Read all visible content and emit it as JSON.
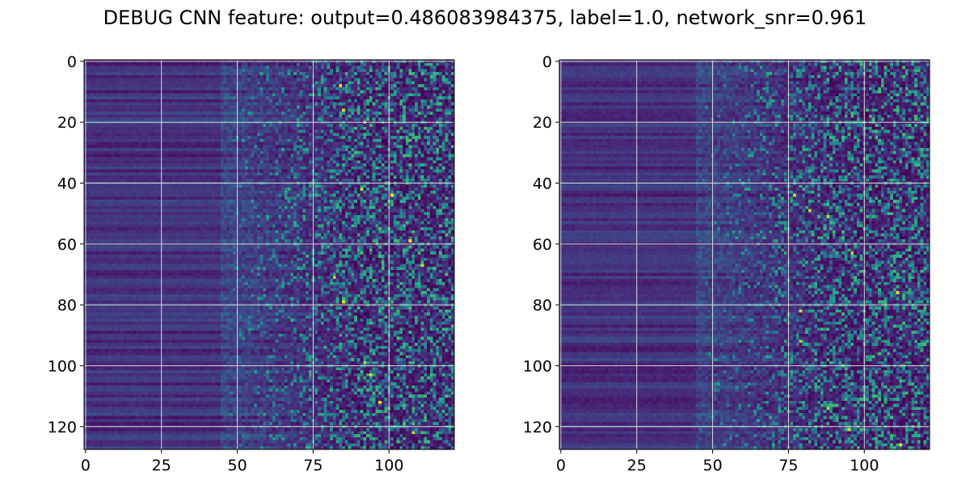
{
  "figure": {
    "title": "DEBUG CNN feature: output=0.486083984375, label=1.0, network_snr=0.961"
  },
  "colormap": "viridis",
  "colors": {
    "grid": "#d9d9d9",
    "axes": "#000000"
  },
  "chart_data": [
    {
      "type": "heatmap",
      "title": "",
      "xlabel": "",
      "ylabel": "",
      "grid": true,
      "cols": 122,
      "rows": 128,
      "xlim": [
        -0.5,
        121.5
      ],
      "ylim": [
        127.5,
        -0.5
      ],
      "x_ticks": [
        0,
        25,
        50,
        75,
        100
      ],
      "y_ticks": [
        0,
        20,
        40,
        60,
        80,
        100,
        120
      ],
      "y_axis": "inverted",
      "value_range": [
        0,
        1
      ],
      "hot_rows": [
        8,
        16,
        20,
        42,
        44,
        59,
        67,
        71,
        79,
        99,
        103,
        112,
        122
      ],
      "hot_cols": [
        82,
        87,
        92,
        93,
        99,
        106,
        110
      ]
    },
    {
      "type": "heatmap",
      "title": "",
      "xlabel": "",
      "ylabel": "",
      "grid": true,
      "cols": 122,
      "rows": 128,
      "xlim": [
        -0.5,
        121.5
      ],
      "ylim": [
        127.5,
        -0.5
      ],
      "x_ticks": [
        0,
        25,
        50,
        75,
        100
      ],
      "y_ticks": [
        0,
        20,
        40,
        60,
        80,
        100,
        120
      ],
      "y_axis": "inverted",
      "value_range": [
        0,
        1
      ],
      "hot_rows": [
        44,
        49,
        51,
        63,
        76,
        82,
        92,
        114,
        121,
        126
      ],
      "hot_cols": [
        78,
        81,
        88,
        95,
        113
      ]
    }
  ]
}
